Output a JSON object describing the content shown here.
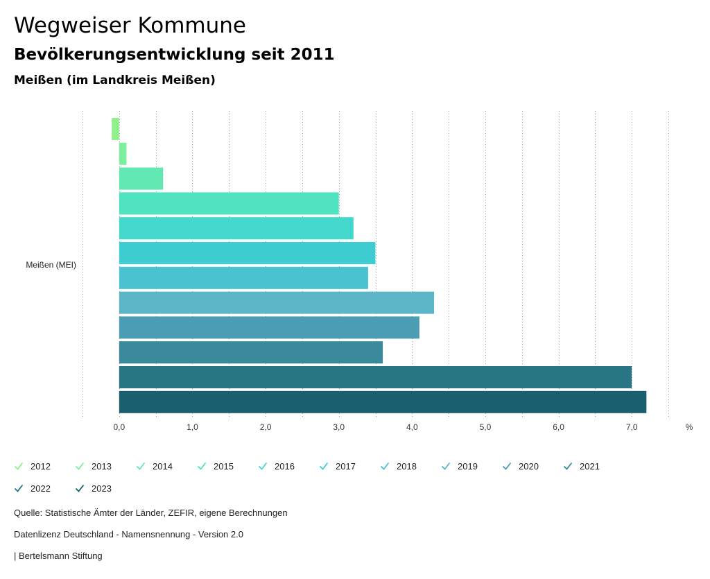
{
  "header": {
    "title": "Wegweiser Kommune",
    "subtitle": "Bevölkerungsentwicklung seit 2011",
    "region": "Meißen (im Landkreis Meißen)"
  },
  "chart_data": {
    "type": "bar",
    "orientation": "horizontal",
    "categories": [
      "Meißen (MEI)"
    ],
    "xlabel": "",
    "ylabel": "",
    "unit": "%",
    "xlim": [
      -0.5,
      7.5
    ],
    "xticks": [
      0,
      1,
      2,
      3,
      4,
      5,
      6,
      7
    ],
    "xtick_labels": [
      "0,0",
      "1,0",
      "2,0",
      "3,0",
      "4,0",
      "5,0",
      "6,0",
      "7,0"
    ],
    "grid": true,
    "legend_position": "bottom",
    "series": [
      {
        "name": "2012",
        "color": "#90f08c",
        "values": [
          -0.1
        ]
      },
      {
        "name": "2013",
        "color": "#7cef9f",
        "values": [
          0.1
        ]
      },
      {
        "name": "2014",
        "color": "#62e8b2",
        "values": [
          0.6
        ]
      },
      {
        "name": "2015",
        "color": "#4fe3c0",
        "values": [
          3.0
        ]
      },
      {
        "name": "2016",
        "color": "#42d8cb",
        "values": [
          3.2
        ]
      },
      {
        "name": "2017",
        "color": "#3ecdd1",
        "values": [
          3.5
        ]
      },
      {
        "name": "2018",
        "color": "#4bc2d0",
        "values": [
          3.4
        ]
      },
      {
        "name": "2019",
        "color": "#5db5c8",
        "values": [
          4.3
        ]
      },
      {
        "name": "2020",
        "color": "#4a9db3",
        "values": [
          4.1
        ]
      },
      {
        "name": "2021",
        "color": "#3b8a9c",
        "values": [
          3.6
        ]
      },
      {
        "name": "2022",
        "color": "#287584",
        "values": [
          7.0
        ]
      },
      {
        "name": "2023",
        "color": "#1a5f6d",
        "values": [
          7.2
        ]
      }
    ]
  },
  "footer": {
    "source": "Quelle: Statistische Ämter der Länder, ZEFIR, eigene Berechnungen",
    "license": "Datenlizenz Deutschland - Namensnennung - Version 2.0",
    "publisher": "| Bertelsmann Stiftung"
  }
}
